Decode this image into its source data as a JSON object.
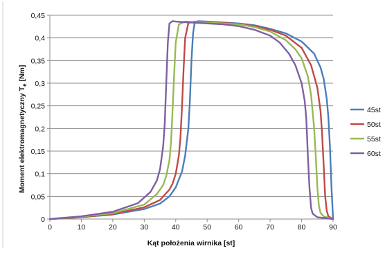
{
  "chart_data": {
    "type": "line",
    "title": "",
    "xlabel": "Kąt położenia wirnika [st]",
    "ylabel_main": "Moment elektromagnetyczny T",
    "ylabel_sub": "e",
    "ylabel_unit": " [Nm]",
    "xlim": [
      0,
      90
    ],
    "ylim": [
      0,
      0.45
    ],
    "x_ticks": [
      0,
      10,
      20,
      30,
      40,
      50,
      60,
      70,
      80,
      90
    ],
    "y_ticks": [
      0,
      0.05,
      0.1,
      0.15,
      0.2,
      0.25,
      0.3,
      0.35,
      0.4,
      0.45
    ],
    "y_tick_labels": [
      "0",
      "0,05",
      "0,1",
      "0,15",
      "0,2",
      "0,25",
      "0,3",
      "0,35",
      "0,4",
      "0,45"
    ],
    "grid": "horizontal",
    "legend_position": "right",
    "series": [
      {
        "name": "45st",
        "color": "#4a7ebb",
        "x": [
          0,
          10,
          20,
          30,
          35,
          38,
          40,
          42,
          43,
          44,
          44.5,
          45,
          45.5,
          46,
          47,
          50,
          55,
          60,
          65,
          70,
          75,
          80,
          84,
          86,
          87,
          88,
          88.5,
          89,
          89.5,
          90
        ],
        "y": [
          0,
          0.004,
          0.01,
          0.022,
          0.034,
          0.05,
          0.07,
          0.105,
          0.14,
          0.2,
          0.26,
          0.35,
          0.41,
          0.432,
          0.437,
          0.436,
          0.434,
          0.432,
          0.428,
          0.42,
          0.41,
          0.392,
          0.365,
          0.335,
          0.31,
          0.265,
          0.225,
          0.16,
          0.07,
          0
        ]
      },
      {
        "name": "50st",
        "color": "#be4b48",
        "x": [
          0,
          10,
          20,
          30,
          35,
          38,
          39,
          40,
          41,
          41.5,
          42,
          42.5,
          43,
          44,
          46,
          50,
          55,
          60,
          65,
          70,
          75,
          80,
          83,
          85,
          86,
          86.5,
          87,
          87.5,
          88,
          88.5,
          90
        ],
        "y": [
          0,
          0.004,
          0.011,
          0.026,
          0.042,
          0.065,
          0.078,
          0.1,
          0.14,
          0.18,
          0.25,
          0.33,
          0.4,
          0.433,
          0.436,
          0.435,
          0.433,
          0.431,
          0.426,
          0.418,
          0.405,
          0.378,
          0.34,
          0.29,
          0.24,
          0.19,
          0.12,
          0.05,
          0.018,
          0.006,
          0
        ]
      },
      {
        "name": "55st",
        "color": "#98b954",
        "x": [
          0,
          10,
          20,
          30,
          34,
          36,
          37,
          38,
          38.5,
          39,
          39.5,
          40,
          41,
          43,
          46,
          50,
          55,
          60,
          65,
          70,
          75,
          78,
          80,
          82,
          83,
          84,
          84.5,
          85,
          85.5,
          86,
          87,
          90
        ],
        "y": [
          0,
          0.005,
          0.013,
          0.032,
          0.055,
          0.075,
          0.095,
          0.13,
          0.17,
          0.24,
          0.32,
          0.39,
          0.43,
          0.436,
          0.435,
          0.434,
          0.432,
          0.43,
          0.424,
          0.414,
          0.395,
          0.375,
          0.355,
          0.315,
          0.275,
          0.2,
          0.14,
          0.07,
          0.03,
          0.014,
          0.006,
          0
        ]
      },
      {
        "name": "60st",
        "color": "#7d60a0",
        "x": [
          0,
          10,
          20,
          28,
          32,
          34,
          35,
          36,
          36.5,
          37,
          37.5,
          38,
          39,
          40,
          45,
          50,
          55,
          60,
          65,
          70,
          73,
          76,
          78,
          80,
          81,
          81.5,
          82,
          82.5,
          83,
          83.5,
          85,
          90
        ],
        "y": [
          0,
          0.006,
          0.016,
          0.035,
          0.06,
          0.085,
          0.11,
          0.16,
          0.21,
          0.3,
          0.39,
          0.432,
          0.437,
          0.436,
          0.434,
          0.432,
          0.43,
          0.426,
          0.418,
          0.405,
          0.39,
          0.365,
          0.34,
          0.3,
          0.26,
          0.22,
          0.14,
          0.07,
          0.025,
          0.012,
          0.004,
          0
        ]
      }
    ]
  }
}
